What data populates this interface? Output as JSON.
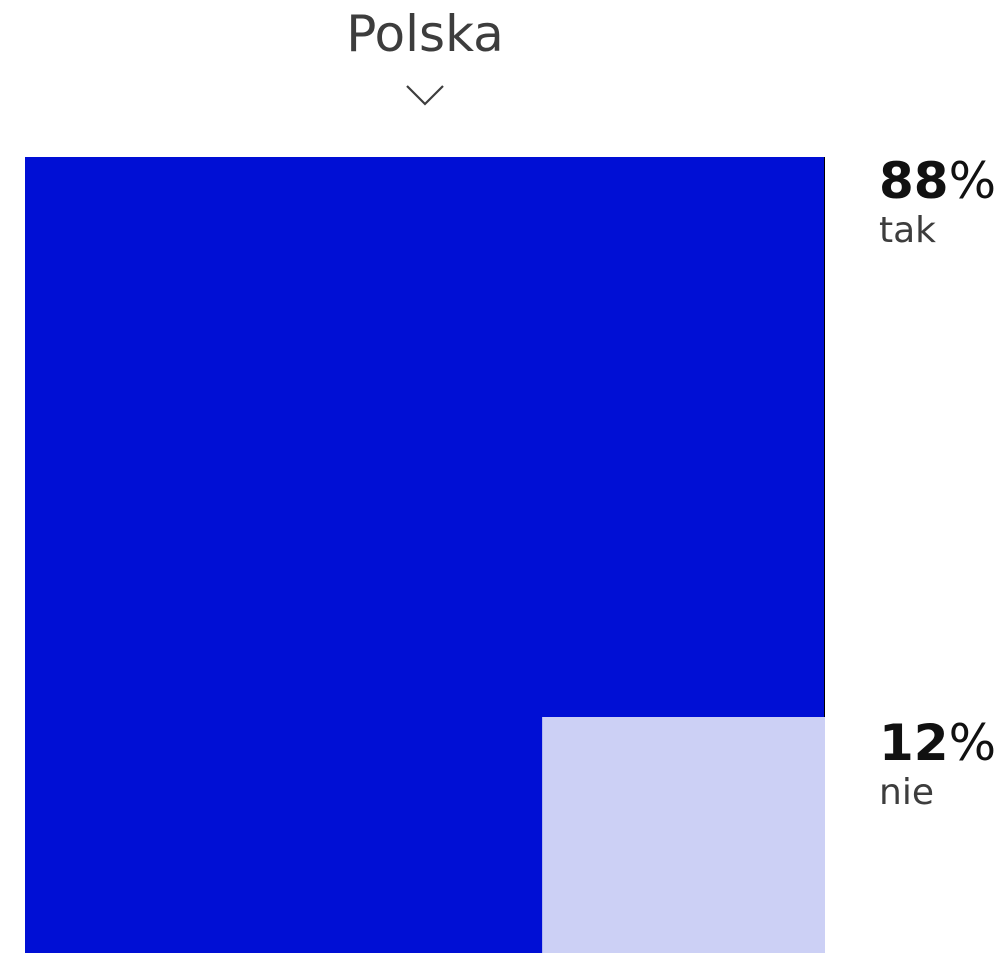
{
  "selector": {
    "label": "Polska",
    "icon": "chevron-down-icon"
  },
  "colors": {
    "tak": "#000fd5",
    "nie": "#ccd0f5",
    "text_dark": "#111111",
    "text_gray": "#3d3d3d"
  },
  "chart_data": {
    "type": "area",
    "title": "Polska",
    "series": [
      {
        "name": "tak",
        "value": 88,
        "unit": "%"
      },
      {
        "name": "nie",
        "value": 12,
        "unit": "%"
      }
    ]
  },
  "legend": [
    {
      "value": "88",
      "unit": "%",
      "label": "tak"
    },
    {
      "value": "12",
      "unit": "%",
      "label": "nie"
    }
  ]
}
